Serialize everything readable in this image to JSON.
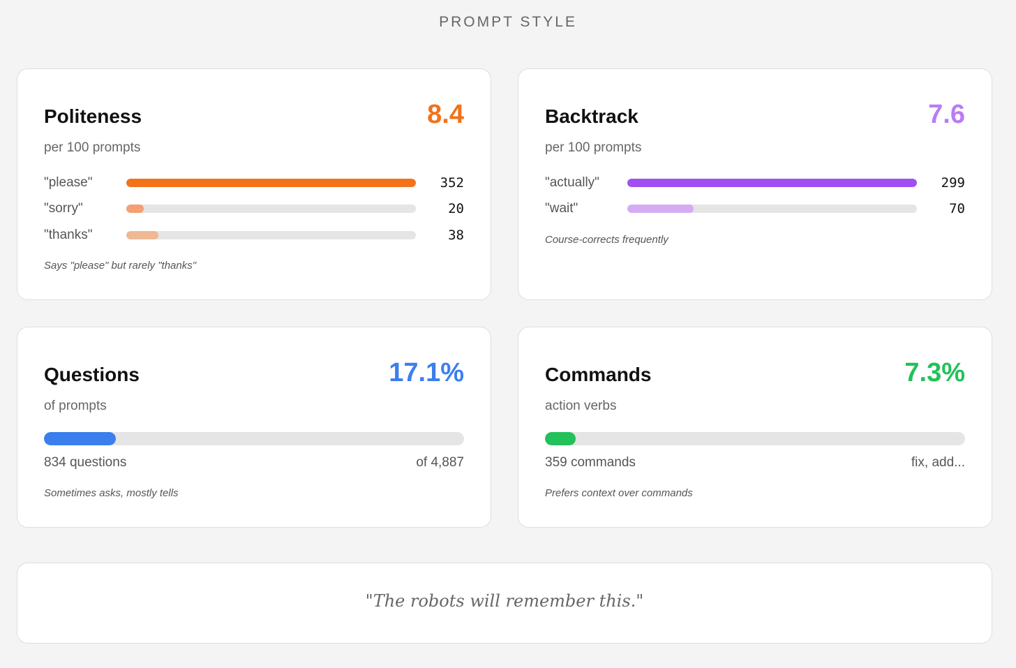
{
  "page_title": "PROMPT STYLE",
  "colors": {
    "orange": "#f27219",
    "orange_light": "#f2a074",
    "orange_pale": "#efb994",
    "purple": "#a04ff0",
    "purple_light": "#d4acf3",
    "purple_score": "#b97cf5",
    "blue": "#3b7fed",
    "green": "#22c159",
    "track": "#e5e5e5"
  },
  "politeness": {
    "title": "Politeness",
    "score": "8.4",
    "subtitle": "per 100 prompts",
    "keywords": [
      {
        "label": "\"please\"",
        "count": "352",
        "fraction": 1.0
      },
      {
        "label": "\"sorry\"",
        "count": "20",
        "fraction": 0.06
      },
      {
        "label": "\"thanks\"",
        "count": "38",
        "fraction": 0.11
      }
    ],
    "note": "Says \"please\" but rarely \"thanks\""
  },
  "backtrack": {
    "title": "Backtrack",
    "score": "7.6",
    "subtitle": "per 100 prompts",
    "keywords": [
      {
        "label": "\"actually\"",
        "count": "299",
        "fraction": 1.0
      },
      {
        "label": "\"wait\"",
        "count": "70",
        "fraction": 0.23
      }
    ],
    "note": "Course-corrects frequently"
  },
  "questions": {
    "title": "Questions",
    "score": "17.1%",
    "subtitle": "of prompts",
    "fraction": 0.171,
    "left_meta": "834 questions",
    "right_meta": "of 4,887",
    "note": "Sometimes asks, mostly tells"
  },
  "commands": {
    "title": "Commands",
    "score": "7.3%",
    "subtitle": "action verbs",
    "fraction": 0.073,
    "left_meta": "359 commands",
    "right_meta": "fix, add...",
    "note": "Prefers context over commands"
  },
  "quote": "\"The robots will remember this.\""
}
